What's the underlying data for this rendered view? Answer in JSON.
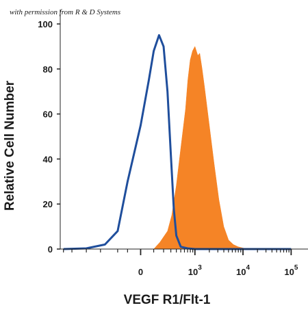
{
  "chart_data": {
    "type": "area",
    "title": "",
    "xlabel": "VEGF R1/Flt-1",
    "ylabel": "Relative Cell Number",
    "watermark": "with permission from R & D Systems",
    "ylim": [
      0,
      100
    ],
    "yticks": [
      0,
      20,
      40,
      60,
      80,
      100
    ],
    "x_scale": "biexponential",
    "x_major_ticks": [
      {
        "base": "0",
        "exp": ""
      },
      {
        "base": "10",
        "exp": "3"
      },
      {
        "base": "10",
        "exp": "4"
      },
      {
        "base": "10",
        "exp": "5"
      }
    ],
    "grid": false,
    "legend": "none",
    "series": [
      {
        "style": "filled",
        "color": "#f58426",
        "x": [
          "10^2.0",
          "10^2.2",
          "10^2.4",
          "10^2.5",
          "10^2.6",
          "10^2.7",
          "10^2.8",
          "10^2.85",
          "10^2.9",
          "10^2.95",
          "10^3.0",
          "10^3.03",
          "10^3.06",
          "10^3.1",
          "10^3.15",
          "10^3.2",
          "10^3.3",
          "10^3.4",
          "10^3.5",
          "10^3.6",
          "10^3.7",
          "10^3.8",
          "10^3.9",
          "10^4.0",
          "10^4.1"
        ],
        "y": [
          0,
          3,
          8,
          15,
          28,
          45,
          62,
          75,
          84,
          88,
          90,
          88,
          86,
          87,
          80,
          72,
          55,
          38,
          22,
          10,
          4,
          2,
          1,
          0.5,
          0
        ]
      },
      {
        "style": "outline",
        "color": "#1f4e9c",
        "x": [
          "-3000",
          "-1000",
          "-400",
          "-200",
          "-100",
          "0",
          "60",
          "100",
          "150",
          "200",
          "250",
          "300",
          "350",
          "400",
          "500",
          "700",
          "1000",
          "10^4",
          "10^5"
        ],
        "y": [
          0,
          0.3,
          2,
          8,
          30,
          55,
          75,
          88,
          95,
          90,
          70,
          42,
          18,
          6,
          1,
          0.3,
          0,
          0,
          0
        ]
      }
    ]
  }
}
